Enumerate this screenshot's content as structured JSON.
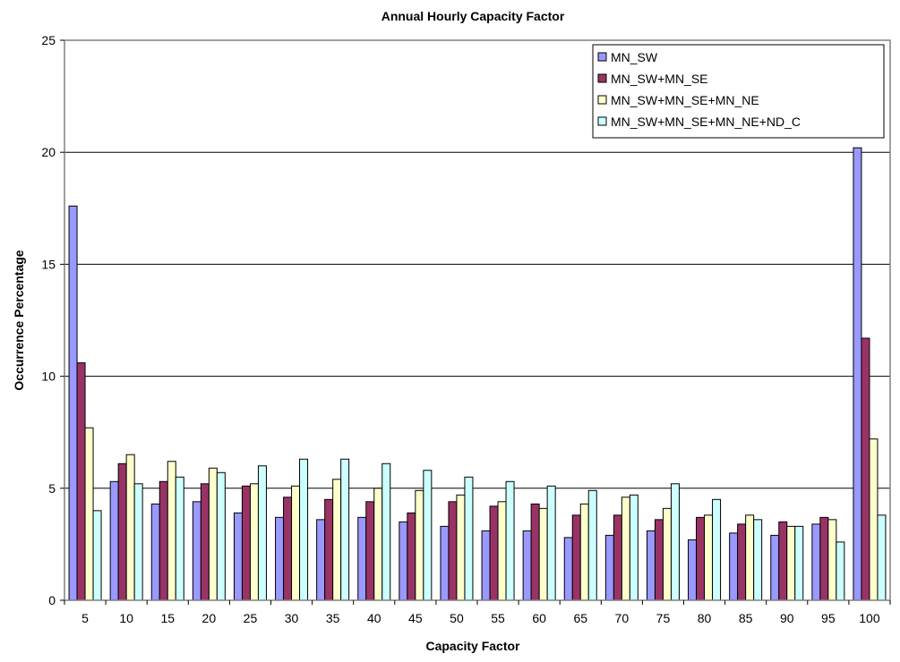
{
  "chart_data": {
    "type": "bar",
    "title": "Annual Hourly Capacity Factor",
    "xlabel": "Capacity Factor",
    "ylabel": "Occurrence Percentage",
    "ylim": [
      0,
      25
    ],
    "yticks": [
      0,
      5,
      10,
      15,
      20,
      25
    ],
    "grid": true,
    "legend_position": "top-right",
    "categories": [
      "5",
      "10",
      "15",
      "20",
      "25",
      "30",
      "35",
      "40",
      "45",
      "50",
      "55",
      "60",
      "65",
      "70",
      "75",
      "80",
      "85",
      "90",
      "95",
      "100"
    ],
    "series": [
      {
        "name": "MN_SW",
        "color": "#9999ff",
        "values": [
          17.6,
          5.3,
          4.3,
          4.4,
          3.9,
          3.7,
          3.6,
          3.7,
          3.5,
          3.3,
          3.1,
          3.1,
          2.8,
          2.9,
          3.1,
          2.7,
          3.0,
          2.9,
          3.4,
          20.2
        ]
      },
      {
        "name": "MN_SW+MN_SE",
        "color": "#993366",
        "values": [
          10.6,
          6.1,
          5.3,
          5.2,
          5.1,
          4.6,
          4.5,
          4.4,
          3.9,
          4.4,
          4.2,
          4.3,
          3.8,
          3.8,
          3.6,
          3.7,
          3.4,
          3.5,
          3.7,
          11.7
        ]
      },
      {
        "name": "MN_SW+MN_SE+MN_NE",
        "color": "#ffffcc",
        "values": [
          7.7,
          6.5,
          6.2,
          5.9,
          5.2,
          5.1,
          5.4,
          5.0,
          4.9,
          4.7,
          4.4,
          4.1,
          4.3,
          4.6,
          4.1,
          3.8,
          3.8,
          3.3,
          3.6,
          7.2
        ]
      },
      {
        "name": "MN_SW+MN_SE+MN_NE+ND_C",
        "color": "#ccffff",
        "values": [
          4.0,
          5.2,
          5.5,
          5.7,
          6.0,
          6.3,
          6.3,
          6.1,
          5.8,
          5.5,
          5.3,
          5.1,
          4.9,
          4.7,
          5.2,
          4.5,
          3.6,
          3.3,
          2.6,
          3.8
        ]
      }
    ]
  }
}
